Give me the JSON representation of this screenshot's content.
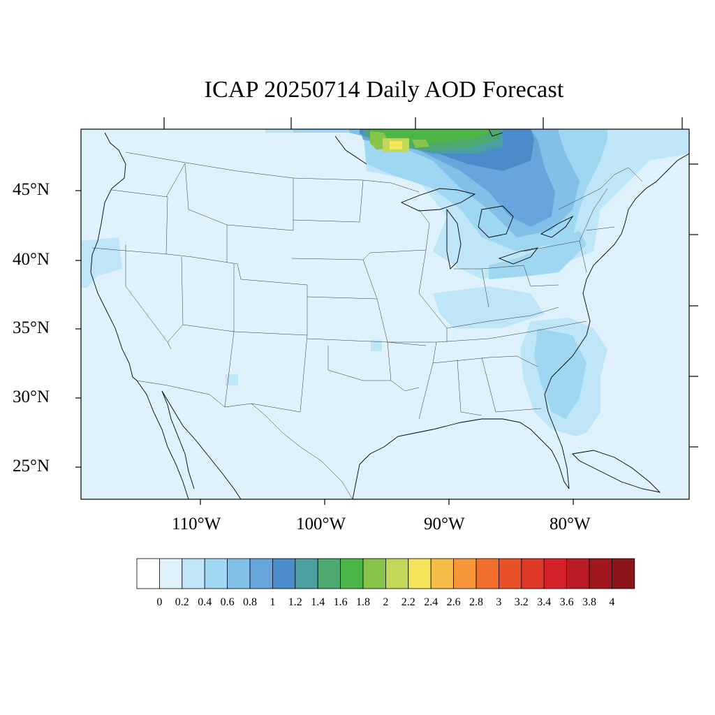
{
  "title": "ICAP 20250714 Daily AOD Forecast",
  "map": {
    "lat_labels": [
      "45°N",
      "40°N",
      "35°N",
      "30°N",
      "25°N"
    ],
    "lon_labels": [
      "110°W",
      "100°W",
      "90°W",
      "80°W"
    ],
    "extent": {
      "lon_min": -119,
      "lon_max": -71,
      "lat_min": 23,
      "lat_max": 49
    },
    "background_color": "#dff2fb",
    "features": [
      "coastlines",
      "US state boundaries",
      "Canada/Mexico borders",
      "Great Lakes"
    ],
    "plume_regions": [
      {
        "name": "Ontario / upper Midwest smoke",
        "aod_level": "1.0-2.0",
        "peak_aod": "2.2-2.4"
      },
      {
        "name": "Great Lakes / Ohio Valley",
        "aod_level": "0.6-1.0"
      },
      {
        "name": "Southeast US coast",
        "aod_level": "0.4-0.6"
      },
      {
        "name": "Northern California coast",
        "aod_level": "0.2-0.4"
      }
    ]
  },
  "colorbar": {
    "labels": [
      "0",
      "0.2",
      "0.4",
      "0.6",
      "0.8",
      "1",
      "1.2",
      "1.4",
      "1.6",
      "1.8",
      "2",
      "2.2",
      "2.4",
      "2.6",
      "2.8",
      "3",
      "3.2",
      "3.4",
      "3.6",
      "3.8",
      "4"
    ],
    "colors": [
      "#ffffff",
      "#dff2fb",
      "#bfe6f8",
      "#9fd7f3",
      "#82c0e8",
      "#66a6dc",
      "#4a8bc9",
      "#4aa0a0",
      "#4ca870",
      "#4bb547",
      "#86c44a",
      "#c2d65a",
      "#f6e45a",
      "#f7bd4a",
      "#f7963b",
      "#f26e2c",
      "#ea5128",
      "#e03826",
      "#d42029",
      "#b91c24",
      "#a0171e",
      "#8b1519"
    ]
  }
}
